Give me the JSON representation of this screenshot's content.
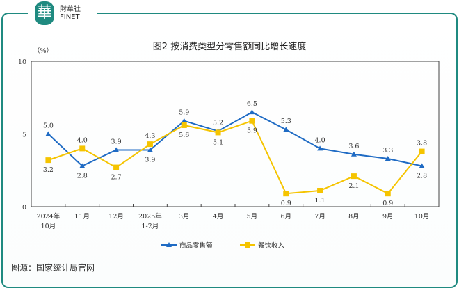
{
  "brand": {
    "mark": "華",
    "name_cn": "財華社",
    "name_en": "FINET"
  },
  "source": "图源：国家统计局官网",
  "chart_data": {
    "type": "line",
    "title": "图2  按消费类型分零售额同比增长速度",
    "ylabel": "（%）",
    "ylim": [
      0,
      10
    ],
    "yticks": [
      "0",
      "5",
      "10"
    ],
    "grid": false,
    "legend_position": "bottom",
    "categories": [
      [
        "2024年",
        "10月"
      ],
      [
        "11月"
      ],
      [
        "12月"
      ],
      [
        "2025年",
        "1-2月"
      ],
      [
        "3月"
      ],
      [
        "4月"
      ],
      [
        "5月"
      ],
      [
        "6月"
      ],
      [
        "7月"
      ],
      [
        "8月"
      ],
      [
        "9月"
      ],
      [
        "10月"
      ]
    ],
    "series": [
      {
        "name": "商品零售额",
        "color": "#1f6bc4",
        "marker": "triangle",
        "values": [
          5.0,
          2.8,
          3.9,
          3.9,
          5.9,
          5.2,
          6.5,
          5.3,
          4.0,
          3.6,
          3.3,
          2.8
        ]
      },
      {
        "name": "餐饮收入",
        "color": "#f5c400",
        "marker": "square",
        "values": [
          3.2,
          4.0,
          2.7,
          4.3,
          5.6,
          5.1,
          5.9,
          0.9,
          1.1,
          2.1,
          0.9,
          3.8
        ]
      }
    ]
  }
}
